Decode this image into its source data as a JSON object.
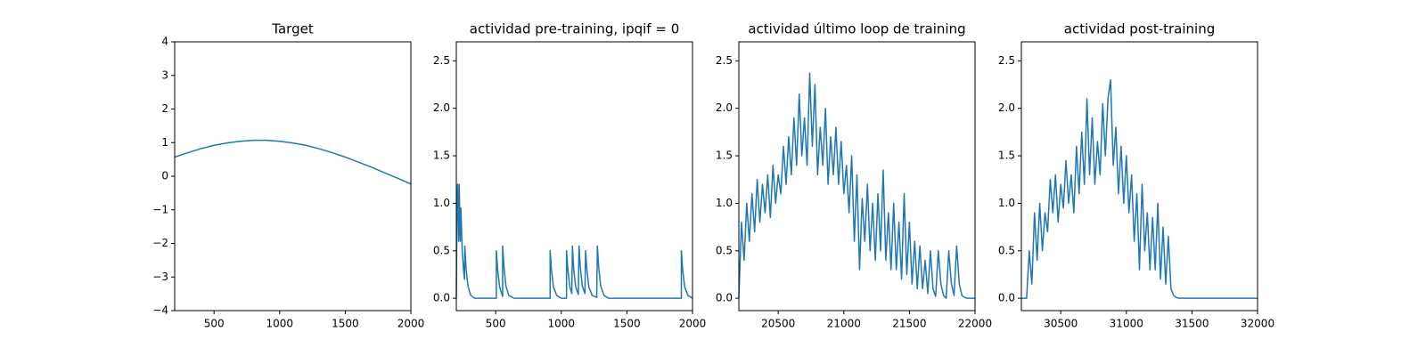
{
  "chart_data": [
    {
      "type": "line",
      "title": "Target",
      "color": "#1f77b4",
      "x": [
        200,
        300,
        400,
        500,
        600,
        700,
        800,
        900,
        1000,
        1100,
        1200,
        1300,
        1400,
        1500,
        1600,
        1700,
        1800,
        1900,
        2000
      ],
      "values": [
        0.57,
        0.7,
        0.82,
        0.92,
        0.99,
        1.04,
        1.07,
        1.07,
        1.04,
        0.99,
        0.92,
        0.82,
        0.7,
        0.57,
        0.42,
        0.27,
        0.1,
        -0.06,
        -0.23
      ],
      "xlim": [
        200,
        2000
      ],
      "xticks": [
        500,
        1000,
        1500,
        2000
      ],
      "ylim": [
        -4,
        4
      ],
      "yticks": [
        {
          "value": -4,
          "label": "−4"
        },
        {
          "value": -3,
          "label": "−3"
        },
        {
          "value": -2,
          "label": "−2"
        },
        {
          "value": -1,
          "label": "−1"
        },
        0,
        1,
        2,
        3,
        4
      ]
    },
    {
      "type": "line",
      "title": "actividad pre-training, ipqif = 0",
      "color": "#1f77b4",
      "x": [
        200,
        205,
        210,
        218,
        222,
        230,
        235,
        245,
        255,
        262,
        265,
        275,
        290,
        310,
        340,
        505,
        505,
        515,
        530,
        545,
        553,
        553,
        563,
        578,
        600,
        640,
        915,
        915,
        925,
        940,
        965,
        1000,
        1040,
        1040,
        1050,
        1065,
        1080,
        1085,
        1095,
        1110,
        1130,
        1135,
        1145,
        1160,
        1180,
        1185,
        1195,
        1210,
        1235,
        1270,
        1275,
        1285,
        1300,
        1325,
        1360,
        1915,
        1915,
        1925,
        1940,
        1965,
        2000
      ],
      "values": [
        0,
        0.9,
        1.2,
        0.6,
        1.2,
        0.6,
        0.95,
        0.5,
        0.3,
        0.2,
        0.55,
        0.3,
        0.12,
        0.03,
        0,
        0,
        0.5,
        0.3,
        0.12,
        0.05,
        0.02,
        0.55,
        0.33,
        0.13,
        0.03,
        0,
        0,
        0.5,
        0.3,
        0.12,
        0.03,
        0,
        0,
        0.5,
        0.3,
        0.12,
        0.05,
        0.55,
        0.3,
        0.12,
        0.04,
        0.55,
        0.33,
        0.13,
        0.05,
        0.5,
        0.3,
        0.12,
        0.03,
        0.01,
        0.55,
        0.33,
        0.13,
        0.03,
        0,
        0,
        0.5,
        0.3,
        0.12,
        0.03,
        0
      ],
      "xlim": [
        200,
        2000
      ],
      "xticks": [
        500,
        1000,
        1500,
        2000
      ],
      "ylim": [
        -0.13,
        2.7
      ],
      "yticks": [
        {
          "value": 0,
          "label": "0.0"
        },
        0.5,
        {
          "value": 1,
          "label": "1.0"
        },
        1.5,
        {
          "value": 2,
          "label": "2.0"
        },
        2.5
      ]
    },
    {
      "type": "line",
      "title": "actividad último loop de training",
      "color": "#1f77b4",
      "x": [
        20200,
        20220,
        20240,
        20260,
        20280,
        20300,
        20320,
        20340,
        20360,
        20380,
        20400,
        20420,
        20440,
        20460,
        20480,
        20500,
        20520,
        20540,
        20560,
        20580,
        20600,
        20620,
        20640,
        20660,
        20680,
        20700,
        20720,
        20740,
        20760,
        20780,
        20800,
        20820,
        20840,
        20860,
        20880,
        20900,
        20920,
        20940,
        20960,
        20980,
        21000,
        21020,
        21040,
        21060,
        21080,
        21100,
        21120,
        21140,
        21160,
        21180,
        21200,
        21220,
        21240,
        21260,
        21280,
        21300,
        21320,
        21340,
        21360,
        21380,
        21400,
        21420,
        21440,
        21460,
        21480,
        21500,
        21520,
        21540,
        21560,
        21580,
        21600,
        21620,
        21640,
        21660,
        21680,
        21700,
        21720,
        21740,
        21760,
        21780,
        21800,
        21820,
        21840,
        21860,
        21880,
        21900,
        21920,
        21940,
        22000
      ],
      "values": [
        0,
        0.8,
        0.4,
        1.0,
        0.6,
        1.1,
        0.7,
        1.25,
        0.8,
        1.2,
        0.9,
        1.3,
        0.85,
        1.4,
        1.0,
        1.3,
        1.1,
        1.6,
        1.2,
        1.7,
        1.3,
        1.9,
        1.4,
        2.15,
        1.5,
        1.9,
        1.4,
        2.37,
        1.6,
        2.25,
        1.3,
        1.8,
        1.4,
        2.0,
        1.2,
        1.7,
        1.3,
        1.8,
        1.2,
        1.65,
        1.1,
        1.4,
        0.9,
        1.5,
        0.6,
        1.3,
        0.3,
        1.05,
        0.6,
        1.2,
        0.5,
        1.0,
        0.4,
        1.1,
        0.5,
        1.35,
        0.4,
        0.9,
        0.3,
        1.0,
        0.3,
        0.8,
        0.2,
        1.1,
        0.25,
        0.8,
        0.15,
        0.6,
        0.1,
        0.55,
        0.1,
        0.4,
        0.05,
        0.5,
        0.1,
        0.02,
        0.5,
        0.15,
        0.03,
        0,
        0.5,
        0.15,
        0.03,
        0.55,
        0.15,
        0.03,
        0.01,
        0,
        0
      ],
      "xlim": [
        20200,
        22000
      ],
      "xticks": [
        20500,
        21000,
        21500,
        22000
      ],
      "ylim": [
        -0.13,
        2.7
      ],
      "yticks": [
        {
          "value": 0,
          "label": "0.0"
        },
        0.5,
        {
          "value": 1,
          "label": "1.0"
        },
        1.5,
        {
          "value": 2,
          "label": "2.0"
        },
        2.5
      ]
    },
    {
      "type": "line",
      "title": "actividad post-training",
      "color": "#1f77b4",
      "x": [
        30200,
        30220,
        30240,
        30260,
        30280,
        30300,
        30320,
        30340,
        30360,
        30380,
        30400,
        30420,
        30440,
        30460,
        30480,
        30500,
        30520,
        30540,
        30560,
        30580,
        30600,
        30620,
        30640,
        30660,
        30680,
        30700,
        30720,
        30740,
        30760,
        30780,
        30800,
        30820,
        30840,
        30860,
        30880,
        30900,
        30920,
        30940,
        30960,
        30980,
        31000,
        31020,
        31040,
        31060,
        31080,
        31100,
        31120,
        31140,
        31160,
        31180,
        31200,
        31220,
        31240,
        31260,
        31280,
        31300,
        31320,
        31340,
        31360,
        31380,
        31400,
        32000
      ],
      "values": [
        0,
        0,
        0,
        0.5,
        0.15,
        0.9,
        0.4,
        1.0,
        0.5,
        0.9,
        0.7,
        1.25,
        0.9,
        1.3,
        0.8,
        1.2,
        0.95,
        1.45,
        1.0,
        1.3,
        0.9,
        1.6,
        1.1,
        1.75,
        1.2,
        2.1,
        1.3,
        1.9,
        1.2,
        1.65,
        1.3,
        2.05,
        1.5,
        2.1,
        2.3,
        1.4,
        1.8,
        1.1,
        1.6,
        1.0,
        1.5,
        0.9,
        1.3,
        0.6,
        1.1,
        0.3,
        1.2,
        0.5,
        0.9,
        0.3,
        0.85,
        0.3,
        1.0,
        0.2,
        0.75,
        0.15,
        0.65,
        0.1,
        0.03,
        0.01,
        0,
        0
      ],
      "xlim": [
        30200,
        32000
      ],
      "xticks": [
        30500,
        31000,
        31500,
        32000
      ],
      "ylim": [
        -0.13,
        2.7
      ],
      "yticks": [
        {
          "value": 0,
          "label": "0.0"
        },
        0.5,
        {
          "value": 1,
          "label": "1.0"
        },
        1.5,
        {
          "value": 2,
          "label": "2.0"
        },
        2.5
      ]
    }
  ]
}
